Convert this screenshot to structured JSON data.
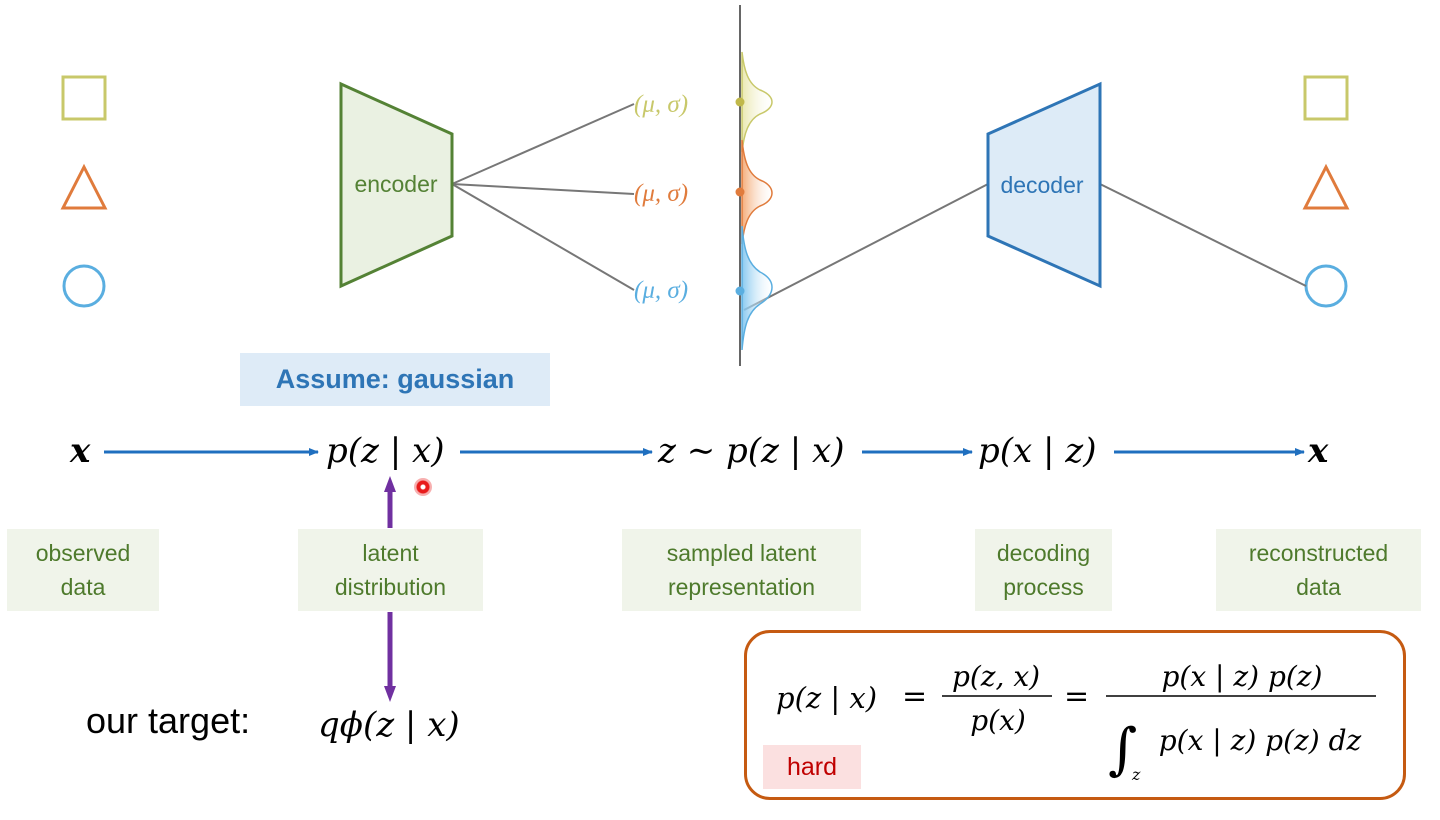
{
  "diagram": {
    "encoder_label": "encoder",
    "decoder_label": "decoder",
    "mu_sigma_labels": [
      "(μ, σ)",
      "(μ, σ)",
      "(μ, σ)"
    ],
    "assume_label": "Assume: gaussian",
    "flow": {
      "x_in": "x",
      "posterior": "p(z | x)",
      "sample": "z ∼ p(z | x)",
      "likelihood": "p(x | z)",
      "x_out": "x"
    },
    "captions": {
      "observed": [
        "observed",
        "data"
      ],
      "latent": [
        "latent",
        "distribution"
      ],
      "sampled": [
        "sampled latent",
        "representation"
      ],
      "decoding": [
        "decoding",
        "process"
      ],
      "reconstructed": [
        "reconstructed",
        "data"
      ]
    },
    "target_label": "our target:",
    "target_expr": "qϕ(z | x)",
    "hard_label": "hard",
    "formula": {
      "lhs": "p(z | x)",
      "frac1_num": "p(z, x)",
      "frac1_den": "p(x)",
      "frac2_num": "p(x | z) p(z)",
      "frac2_den": "p(x | z) p(z) dz",
      "integral_var": "z"
    },
    "colors": {
      "yellow": "#c8c86a",
      "orange": "#e07b3c",
      "blue": "#5aaee0",
      "encoder": "#548235",
      "decoder": "#2e75b6",
      "arrow": "#1f6fbf",
      "purple": "#7030a0"
    },
    "icons": [
      "square-icon",
      "triangle-icon",
      "circle-icon"
    ]
  }
}
